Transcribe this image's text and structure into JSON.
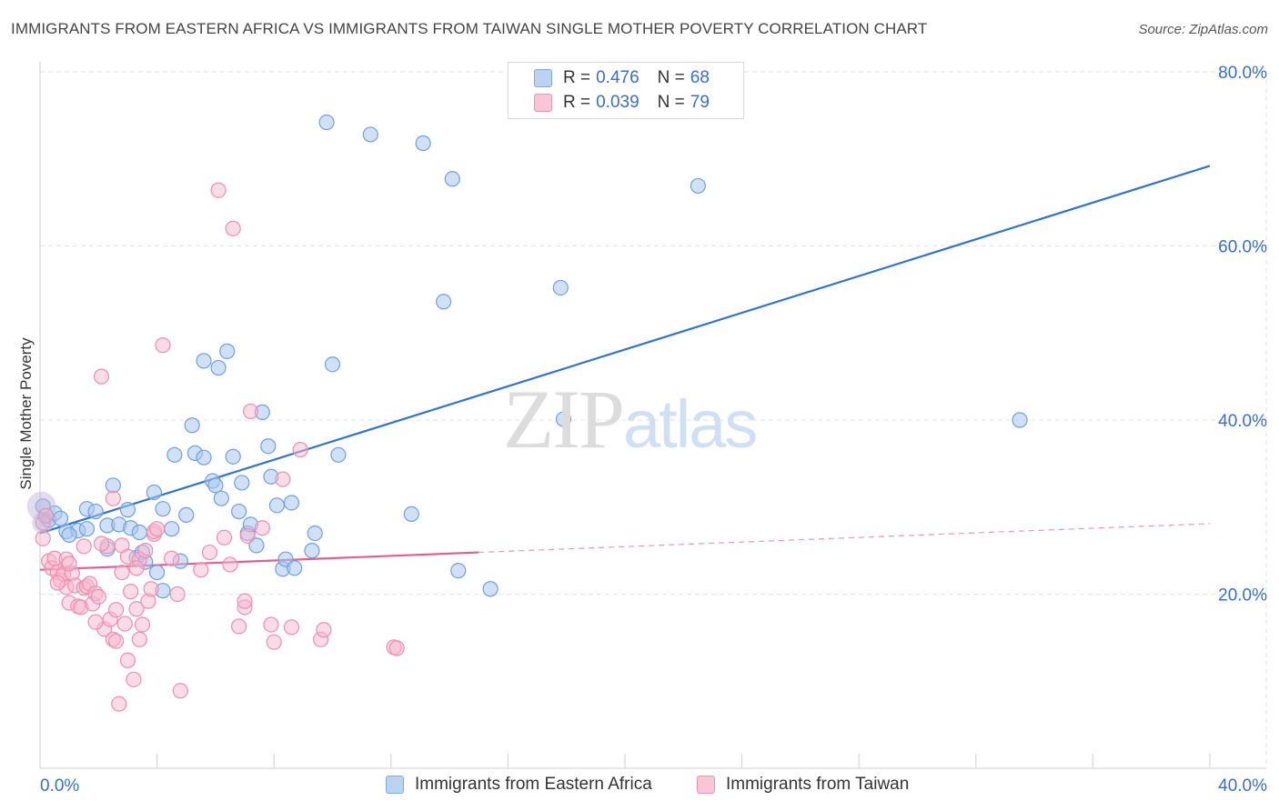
{
  "title": "IMMIGRANTS FROM EASTERN AFRICA VS IMMIGRANTS FROM TAIWAN SINGLE MOTHER POVERTY CORRELATION CHART",
  "source": "Source: ZipAtlas.com",
  "watermark": {
    "zip": "ZIP",
    "atlas": "atlas"
  },
  "colors": {
    "blue": "#4a86d8",
    "blue_fill": "#a9c8f0",
    "pink": "#e8709a",
    "pink_fill": "#f7b8cc",
    "axis_text": "#3a6fc4"
  },
  "legend": {
    "rows": [
      {
        "r_label": "R =",
        "r_value": "0.476",
        "n_label": "N =",
        "n_value": "68"
      },
      {
        "r_label": "R =",
        "r_value": "0.039",
        "n_label": "N =",
        "n_value": "79"
      }
    ]
  },
  "bottom_legend": {
    "series1": "Immigrants from Eastern Africa",
    "series2": "Immigrants from Taiwan"
  },
  "chart_data": {
    "type": "scatter",
    "title": "IMMIGRANTS FROM EASTERN AFRICA VS IMMIGRANTS FROM TAIWAN SINGLE MOTHER POVERTY CORRELATION CHART",
    "xlabel": "",
    "ylabel": "Single Mother Poverty",
    "xlim": [
      0,
      40
    ],
    "ylim": [
      0,
      80
    ],
    "x_tick_labels": [
      "0.0%",
      "40.0%"
    ],
    "y_ticks": [
      20,
      40,
      60,
      80
    ],
    "y_tick_labels": [
      "20.0%",
      "40.0%",
      "60.0%",
      "80.0%"
    ],
    "grid": true,
    "series": [
      {
        "name": "Immigrants from Eastern Africa",
        "color": "#4a86d8",
        "trend": {
          "x0": 0,
          "y0": 27.0,
          "x1": 40,
          "y1": 69.2
        },
        "points": [
          [
            0.3,
            28.5
          ],
          [
            0.5,
            29.3
          ],
          [
            0.7,
            28.7
          ],
          [
            0.2,
            29.0
          ],
          [
            0.9,
            27.2
          ],
          [
            1.3,
            27.3
          ],
          [
            1.6,
            27.5
          ],
          [
            1.0,
            26.8
          ],
          [
            1.6,
            29.8
          ],
          [
            1.9,
            29.5
          ],
          [
            2.3,
            27.9
          ],
          [
            2.5,
            32.5
          ],
          [
            2.3,
            25.2
          ],
          [
            2.7,
            28.0
          ],
          [
            3.0,
            29.7
          ],
          [
            3.1,
            27.6
          ],
          [
            3.3,
            24.2
          ],
          [
            3.5,
            24.8
          ],
          [
            3.4,
            27.1
          ],
          [
            3.6,
            23.7
          ],
          [
            3.9,
            31.7
          ],
          [
            4.2,
            29.8
          ],
          [
            4.5,
            27.5
          ],
          [
            4.0,
            22.5
          ],
          [
            4.2,
            20.4
          ],
          [
            4.8,
            23.8
          ],
          [
            5.0,
            29.1
          ],
          [
            5.2,
            39.4
          ],
          [
            5.3,
            36.2
          ],
          [
            4.6,
            36.0
          ],
          [
            5.6,
            35.7
          ],
          [
            5.6,
            46.8
          ],
          [
            5.9,
            33.0
          ],
          [
            6.0,
            32.5
          ],
          [
            6.2,
            31.0
          ],
          [
            6.1,
            46.0
          ],
          [
            6.4,
            47.9
          ],
          [
            6.6,
            35.8
          ],
          [
            6.8,
            29.5
          ],
          [
            6.9,
            32.8
          ],
          [
            7.1,
            27.0
          ],
          [
            7.2,
            28.0
          ],
          [
            7.4,
            25.6
          ],
          [
            7.6,
            40.9
          ],
          [
            7.8,
            37.0
          ],
          [
            7.9,
            33.5
          ],
          [
            8.1,
            30.2
          ],
          [
            8.3,
            22.9
          ],
          [
            8.4,
            24.0
          ],
          [
            8.6,
            30.5
          ],
          [
            8.7,
            23.0
          ],
          [
            9.3,
            25.0
          ],
          [
            9.4,
            27.0
          ],
          [
            9.8,
            74.2
          ],
          [
            10.0,
            46.4
          ],
          [
            10.2,
            36.0
          ],
          [
            11.3,
            72.8
          ],
          [
            12.7,
            29.2
          ],
          [
            13.1,
            71.8
          ],
          [
            13.8,
            53.6
          ],
          [
            14.1,
            67.7
          ],
          [
            14.3,
            22.7
          ],
          [
            15.4,
            20.6
          ],
          [
            17.8,
            55.2
          ],
          [
            17.9,
            40.1
          ],
          [
            22.5,
            66.9
          ],
          [
            33.5,
            40.0
          ],
          [
            0.1,
            30.1
          ]
        ]
      },
      {
        "name": "Immigrants from Taiwan",
        "color": "#e8709a",
        "trend": {
          "x0": 0,
          "y0": 22.8,
          "x1": 15.0,
          "y1": 24.8,
          "dashed_to": {
            "x": 40,
            "y": 28.1
          }
        },
        "points": [
          [
            0.1,
            28.2
          ],
          [
            0.1,
            26.4
          ],
          [
            0.2,
            29.0
          ],
          [
            0.3,
            23.8
          ],
          [
            0.4,
            23.0
          ],
          [
            0.5,
            24.1
          ],
          [
            0.6,
            22.5
          ],
          [
            0.7,
            21.6
          ],
          [
            0.8,
            22.3
          ],
          [
            0.9,
            24.0
          ],
          [
            0.9,
            20.8
          ],
          [
            1.0,
            19.0
          ],
          [
            1.1,
            22.4
          ],
          [
            1.2,
            21.0
          ],
          [
            1.3,
            18.6
          ],
          [
            1.4,
            18.5
          ],
          [
            1.5,
            20.7
          ],
          [
            1.6,
            20.9
          ],
          [
            1.7,
            21.2
          ],
          [
            1.8,
            18.9
          ],
          [
            1.9,
            20.1
          ],
          [
            2.0,
            19.7
          ],
          [
            2.1,
            45.0
          ],
          [
            2.2,
            16.0
          ],
          [
            2.3,
            25.5
          ],
          [
            2.4,
            17.1
          ],
          [
            2.5,
            14.8
          ],
          [
            2.5,
            31.0
          ],
          [
            2.6,
            18.2
          ],
          [
            2.6,
            14.6
          ],
          [
            2.7,
            7.4
          ],
          [
            2.8,
            22.5
          ],
          [
            2.8,
            25.6
          ],
          [
            2.9,
            16.6
          ],
          [
            3.0,
            12.4
          ],
          [
            3.0,
            24.3
          ],
          [
            3.1,
            20.3
          ],
          [
            3.2,
            10.2
          ],
          [
            3.3,
            18.3
          ],
          [
            3.4,
            14.8
          ],
          [
            3.4,
            24.0
          ],
          [
            3.5,
            16.5
          ],
          [
            3.6,
            25.0
          ],
          [
            3.7,
            19.2
          ],
          [
            3.8,
            20.6
          ],
          [
            3.9,
            26.9
          ],
          [
            3.9,
            27.2
          ],
          [
            4.0,
            27.5
          ],
          [
            4.2,
            48.6
          ],
          [
            4.5,
            24.1
          ],
          [
            4.7,
            20.0
          ],
          [
            4.8,
            8.9
          ],
          [
            5.5,
            22.8
          ],
          [
            5.8,
            24.8
          ],
          [
            6.1,
            66.4
          ],
          [
            6.3,
            26.5
          ],
          [
            6.5,
            23.4
          ],
          [
            6.6,
            62.0
          ],
          [
            6.8,
            16.3
          ],
          [
            7.0,
            18.5
          ],
          [
            7.0,
            19.2
          ],
          [
            7.1,
            26.7
          ],
          [
            7.2,
            41.0
          ],
          [
            7.6,
            27.6
          ],
          [
            7.9,
            16.5
          ],
          [
            8.0,
            14.5
          ],
          [
            8.3,
            33.2
          ],
          [
            8.6,
            16.2
          ],
          [
            8.9,
            36.6
          ],
          [
            9.6,
            14.8
          ],
          [
            9.7,
            15.9
          ],
          [
            12.1,
            13.9
          ],
          [
            12.2,
            13.8
          ],
          [
            1.0,
            23.5
          ],
          [
            1.5,
            25.5
          ],
          [
            2.1,
            25.8
          ],
          [
            0.6,
            21.3
          ],
          [
            1.9,
            16.8
          ],
          [
            3.3,
            23.0
          ]
        ]
      }
    ]
  }
}
